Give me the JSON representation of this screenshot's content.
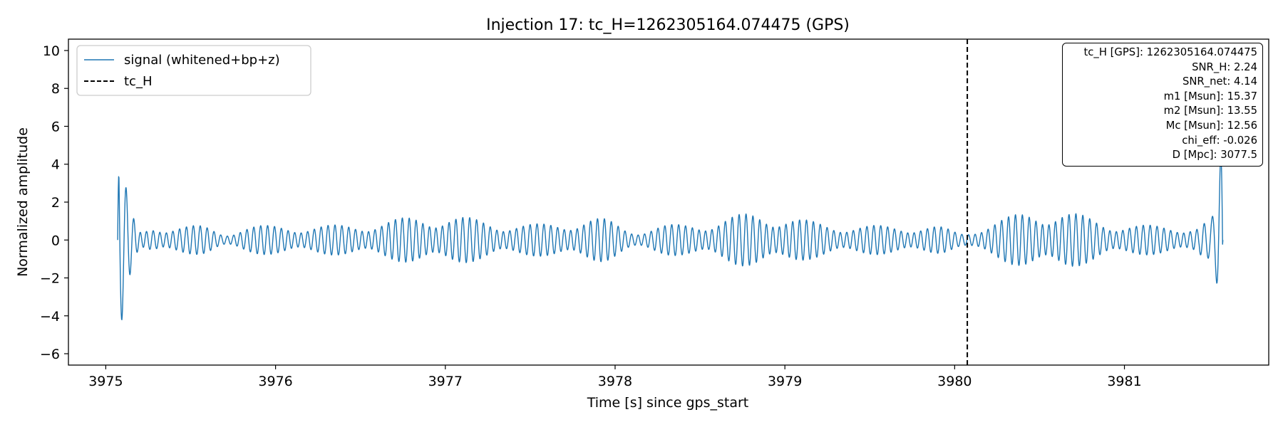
{
  "chart_data": {
    "type": "line",
    "title": "Injection 17: tc_H=1262305164.074475 (GPS)",
    "xlabel": "Time [s] since gps_start",
    "ylabel": "Normalized amplitude",
    "xlim": [
      3974.78,
      3981.85
    ],
    "ylim": [
      -6.6,
      10.6
    ],
    "xticks": [
      3975,
      3976,
      3977,
      3978,
      3979,
      3980,
      3981
    ],
    "yticks": [
      -6,
      -4,
      -2,
      0,
      2,
      4,
      6,
      8,
      10
    ],
    "grid": false,
    "legend": "top-left",
    "series": [
      {
        "name": "signal (whitened+bp+z)",
        "color": "#1f77b4",
        "x_start": 3975.07,
        "x_end": 3981.58,
        "y_approx_range": [
          -5.8,
          6.9
        ]
      }
    ],
    "vlines": [
      {
        "name": "tc_H",
        "x": 3980.074475,
        "color": "#000000",
        "style": "dashed"
      }
    ],
    "annotation_box": {
      "lines": [
        "tc_H [GPS]: 1262305164.074475",
        "SNR_H: 2.24",
        "SNR_net: 4.14",
        "m1 [Msun]: 15.37",
        "m2 [Msun]: 13.55",
        "Mc [Msun]: 12.56",
        "chi_eff: -0.026",
        "D [Mpc]: 3077.5"
      ],
      "placement": "top-right"
    }
  }
}
